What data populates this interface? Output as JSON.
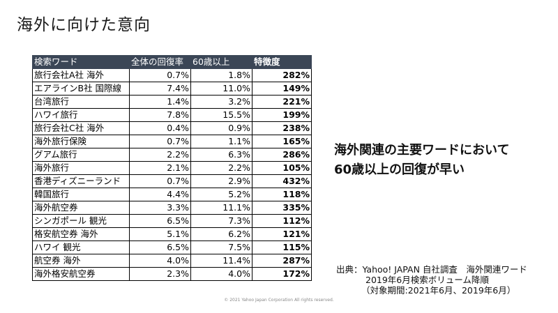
{
  "title": "海外に向けた意向",
  "table": {
    "headers": [
      "検索ワード",
      "全体の回復率",
      "60歳以上",
      "特徴度"
    ],
    "rows": [
      [
        "旅行会社A社 海外",
        "0.7%",
        "1.8%",
        "282%"
      ],
      [
        "エアラインB社 国際線",
        "7.4%",
        "11.0%",
        "149%"
      ],
      [
        "台湾旅行",
        "1.4%",
        "3.2%",
        "221%"
      ],
      [
        "ハワイ旅行",
        "7.8%",
        "15.5%",
        "199%"
      ],
      [
        "旅行会社C社 海外",
        "0.4%",
        "0.9%",
        "238%"
      ],
      [
        "海外旅行保険",
        "0.7%",
        "1.1%",
        "165%"
      ],
      [
        "グアム旅行",
        "2.2%",
        "6.3%",
        "286%"
      ],
      [
        "海外旅行",
        "2.1%",
        "2.2%",
        "105%"
      ],
      [
        "香港ディズニーランド",
        "0.7%",
        "2.9%",
        "432%"
      ],
      [
        "韓国旅行",
        "4.4%",
        "5.2%",
        "118%"
      ],
      [
        "海外航空券",
        "3.3%",
        "11.1%",
        "335%"
      ],
      [
        "シンガポール 観光",
        "6.5%",
        "7.3%",
        "112%"
      ],
      [
        "格安航空券 海外",
        "5.1%",
        "6.2%",
        "121%"
      ],
      [
        "ハワイ 観光",
        "6.5%",
        "7.5%",
        "115%"
      ],
      [
        "航空券 海外",
        "4.0%",
        "11.4%",
        "287%"
      ],
      [
        "海外格安航空券",
        "2.3%",
        "4.0%",
        "172%"
      ]
    ]
  },
  "message": {
    "line1": "海外関連の主要ワードにおいて",
    "line2": "60歳以上の回復が早い"
  },
  "source": {
    "line1": "出典：Yahoo! JAPAN 自社調査　海外関連ワード",
    "line2": "2019年6月検索ボリューム降順",
    "line3": "（対象期間:2021年6月、2019年6月）"
  },
  "copyright": "© 2021 Yahoo Japan Corporation All rights reserved.",
  "colors": {
    "header_bg": "#3b4656",
    "header_text": "#ffffff"
  }
}
